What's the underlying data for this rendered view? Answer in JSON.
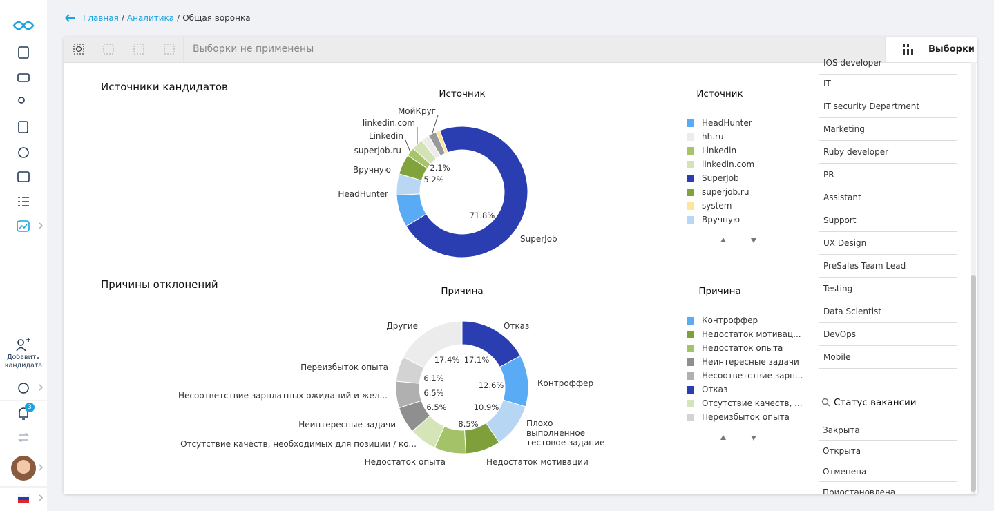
{
  "breadcrumbs": {
    "items": [
      "Главная",
      "Аналитика",
      "Общая воронка"
    ],
    "separator": "/"
  },
  "toolbar": {
    "filter_status": "Выборки не применены",
    "saved_filters_button": "Выборки"
  },
  "sidebar": {
    "add_candidate": "Добавить кандидата",
    "notification_count": 3
  },
  "chart_data": [
    {
      "type": "pie",
      "donut": true,
      "section_title": "Источники кандидатов",
      "title": "Источник",
      "categories": [
        "SuperJob",
        "HeadHunter",
        "Вручную",
        "superjob.ru",
        "Linkedin",
        "linkedin.com",
        null,
        "МойКруг",
        null
      ],
      "values": [
        71.8,
        8.0,
        5.2,
        5.0,
        2.1,
        2.9,
        2.0,
        2.0,
        1.0
      ],
      "value_labels": [
        "71.8%",
        null,
        "5.2%",
        null,
        "2.1%",
        null,
        null,
        null,
        null
      ],
      "colors": [
        "#2a3eb1",
        "#5aabf5",
        "#b9d7f3",
        "#80a33b",
        "#a8c46a",
        "#d4e3b5",
        "#ececec",
        "#9a9a9a",
        "#fde69a"
      ],
      "legend": {
        "title": "Источник",
        "names": [
          "HeadHunter",
          "hh.ru",
          "Linkedin",
          "linkedin.com",
          "SuperJob",
          "superjob.ru",
          "system",
          "Вручную"
        ],
        "colors": [
          "#5aabf5",
          "#ececec",
          "#a8c46a",
          "#d4e3b5",
          "#2a3eb1",
          "#80a33b",
          "#fde69a",
          "#b9d7f3"
        ]
      }
    },
    {
      "type": "pie",
      "donut": true,
      "section_title": "Причины отклонений",
      "title": "Причина",
      "categories": [
        "Отказ",
        "Контроффер",
        "Плохо выполненное тестовое задание",
        "Недостаток мотивации",
        "Недостаток опыта",
        "Отсутствие качеств, необходимых для позиции / ко...",
        "Неинтересные задачи",
        "Несоответствие зарплатных ожиданий и жел...",
        "Переизбыток опыта",
        "Другие"
      ],
      "values": [
        17.1,
        12.6,
        10.9,
        8.5,
        7.7,
        6.7,
        6.5,
        6.5,
        6.1,
        17.4
      ],
      "value_labels": [
        "17.1%",
        "12.6%",
        "10.9%",
        "8.5%",
        null,
        null,
        "6.5%",
        "6.5%",
        "6.1%",
        "17.4%"
      ],
      "colors": [
        "#2a3eb1",
        "#5aabf5",
        "#b7d6f4",
        "#7f9f3a",
        "#a4c267",
        "#d6e5b8",
        "#8f8f8f",
        "#b0b0b0",
        "#d3d3d3",
        "#ececec"
      ],
      "legend": {
        "title": "Причина",
        "names": [
          "Контроффер",
          "Недостаток мотивац...",
          "Недостаток опыта",
          "Неинтересные задачи",
          "Несоответствие зарп...",
          "Отказ",
          "Отсутствие качеств, ...",
          "Переизбыток опыта"
        ],
        "colors": [
          "#5aabf5",
          "#7f9f3a",
          "#a4c267",
          "#8f8f8f",
          "#b0b0b0",
          "#2a3eb1",
          "#d6e5b8",
          "#d3d3d3"
        ]
      }
    }
  ],
  "filter_panel": {
    "items": [
      "IOS developer",
      "IT",
      "IT security Department",
      "Marketing",
      "Ruby  developer",
      "PR",
      "Assistant",
      "Support",
      "UX Design",
      "PreSales Team Lead",
      "Testing",
      "Data Scientist",
      "DevOps",
      "Mobile"
    ],
    "status_title": "Статус вакансии",
    "status_items": [
      "Закрыта",
      "Открыта",
      "Отменена",
      "Приостановлена"
    ]
  }
}
